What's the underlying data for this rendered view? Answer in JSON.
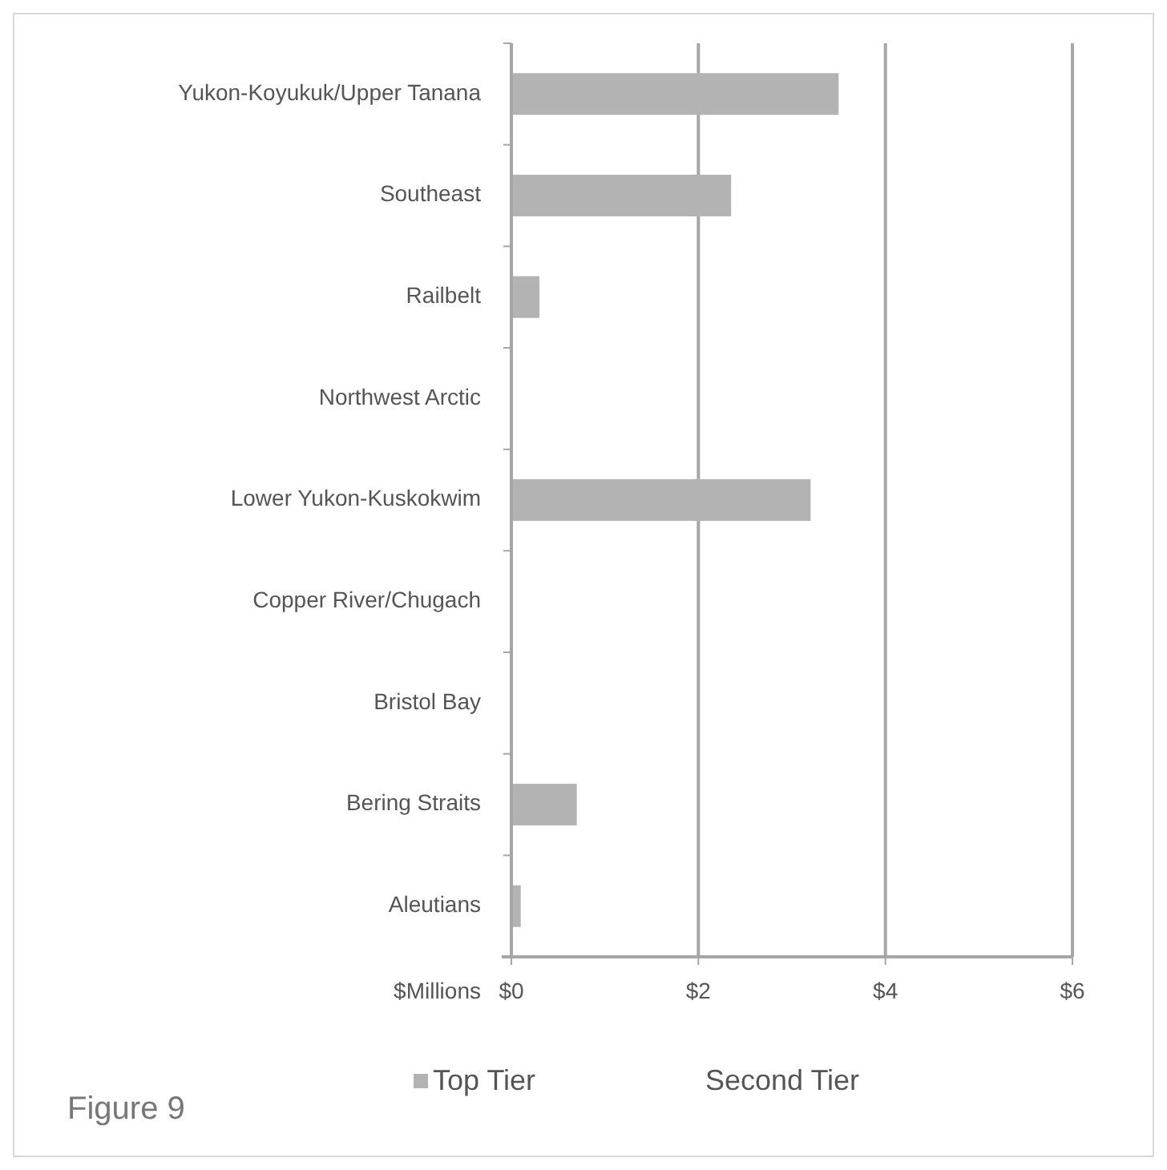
{
  "chart_data": {
    "type": "bar",
    "orientation": "horizontal",
    "categories": [
      "Yukon-Koyukuk/Upper Tanana",
      "Southeast",
      "Railbelt",
      "Northwest Arctic",
      "Lower Yukon-Kuskokwim",
      "Copper River/Chugach",
      "Bristol Bay",
      "Bering Straits",
      "Aleutians"
    ],
    "series": [
      {
        "name": "Top Tier",
        "color": "#b3b3b3",
        "values": [
          3.5,
          2.35,
          0.3,
          0,
          3.2,
          0,
          0,
          0.7,
          0.1
        ]
      },
      {
        "name": "Second Tier",
        "values": [
          null,
          null,
          null,
          null,
          null,
          null,
          null,
          null,
          null
        ]
      }
    ],
    "xlabel": "$Millions",
    "xlim": [
      0,
      6
    ],
    "xticks": [
      {
        "value": 0,
        "label": "$0"
      },
      {
        "value": 2,
        "label": "$2"
      },
      {
        "value": 4,
        "label": "$4"
      },
      {
        "value": 6,
        "label": "$6"
      }
    ],
    "grid": "x",
    "legend": "bottom",
    "annotations": [
      "Figure 9"
    ]
  }
}
